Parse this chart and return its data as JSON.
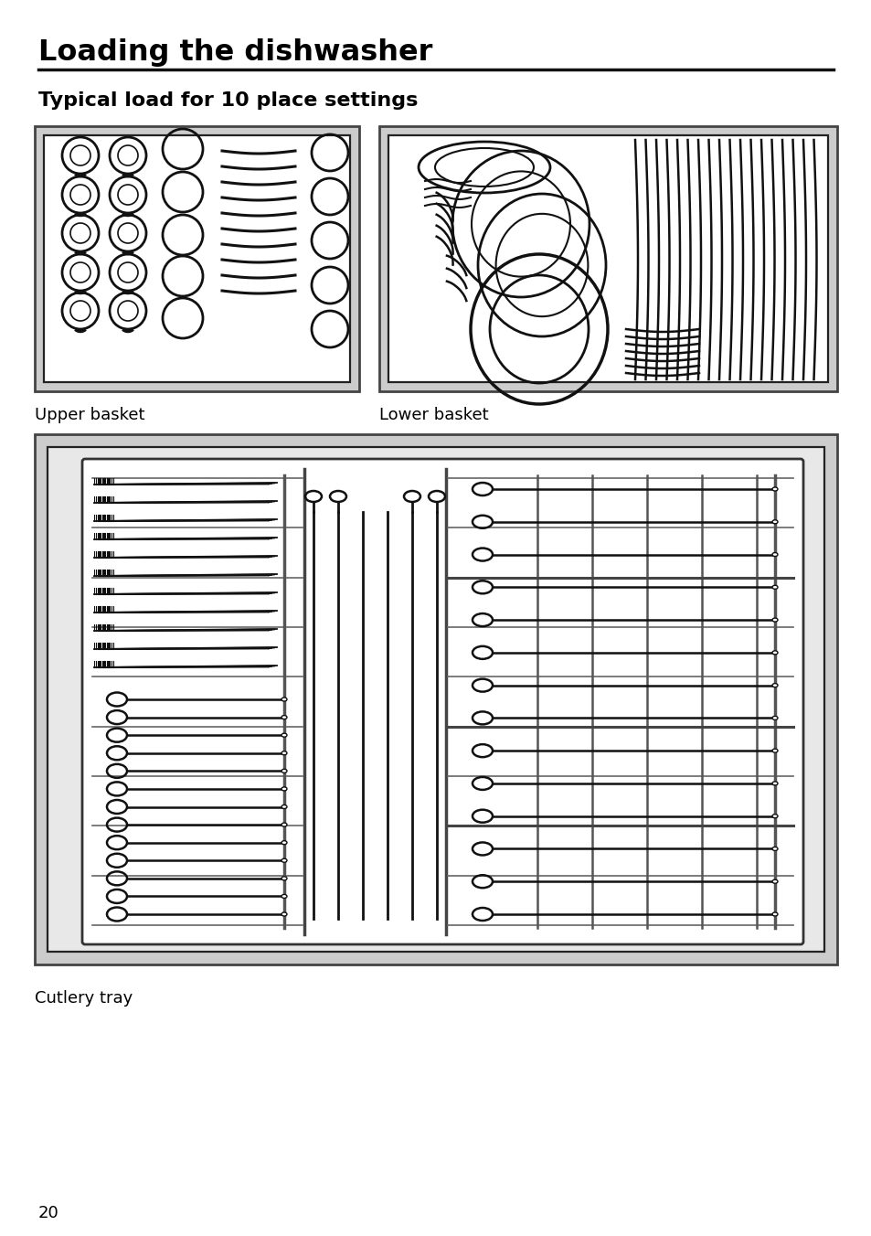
{
  "title": "Loading the dishwasher",
  "subtitle": "Typical load for 10 place settings",
  "label_upper": "Upper basket",
  "label_lower": "Lower basket",
  "label_cutlery": "Cutlery tray",
  "page_number": "20",
  "bg_color": "#ffffff",
  "text_color": "#000000",
  "gray_outer": "#cccccc",
  "gray_inner": "#e8e8e8",
  "white_inner": "#ffffff",
  "line_color": "#111111"
}
